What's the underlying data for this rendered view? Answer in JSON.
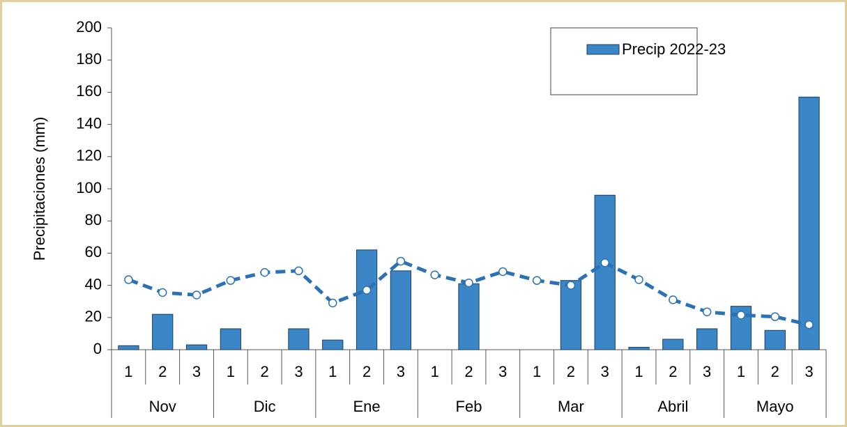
{
  "chart_data": {
    "type": "bar",
    "y_label": "Precipitaciones  (mm)",
    "categories": [
      "1",
      "2",
      "3",
      "1",
      "2",
      "3",
      "1",
      "2",
      "3",
      "1",
      "2",
      "3",
      "1",
      "2",
      "3",
      "1",
      "2",
      "3",
      "1",
      "2",
      "3"
    ],
    "groups": [
      "Nov",
      "Dic",
      "Ene",
      "Feb",
      "Mar",
      "Abril",
      "Mayo"
    ],
    "series": [
      {
        "name": "Precip 2022-23",
        "type": "bar",
        "color": "#3b86c6",
        "values": [
          2.5,
          22,
          3,
          13,
          0,
          13,
          6,
          62,
          49,
          0,
          41,
          0,
          0,
          43,
          96,
          1.5,
          6.5,
          13,
          27,
          12,
          157
        ]
      },
      {
        "type": "line",
        "color": "#2a72b5",
        "values": [
          43.5,
          35.5,
          34,
          43,
          48,
          49,
          29,
          37,
          55,
          46.5,
          41.5,
          48.5,
          43,
          40,
          54,
          43.5,
          31,
          23.5,
          21.5,
          20.5,
          15.5
        ]
      }
    ],
    "ylim": [
      0,
      200
    ],
    "yticks": [
      0,
      20,
      40,
      60,
      80,
      100,
      120,
      140,
      160,
      180,
      200
    ],
    "legend": "top-right"
  }
}
